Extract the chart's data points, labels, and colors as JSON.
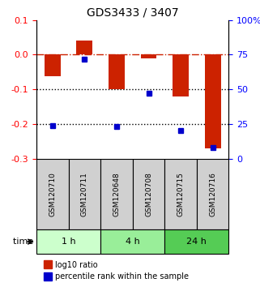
{
  "title": "GDS3433 / 3407",
  "samples": [
    "GSM120710",
    "GSM120711",
    "GSM120648",
    "GSM120708",
    "GSM120715",
    "GSM120716"
  ],
  "log10_ratio": [
    -0.063,
    0.042,
    -0.1,
    -0.01,
    -0.12,
    -0.27
  ],
  "percentile_rank": [
    24,
    72,
    23,
    47,
    20,
    8
  ],
  "time_groups": [
    {
      "label": "1 h",
      "start": 0,
      "end": 2,
      "color": "#ccffcc"
    },
    {
      "label": "4 h",
      "start": 2,
      "end": 4,
      "color": "#99ee99"
    },
    {
      "label": "24 h",
      "start": 4,
      "end": 6,
      "color": "#55cc55"
    }
  ],
  "ylim_left": [
    -0.3,
    0.1
  ],
  "ylim_right": [
    0,
    100
  ],
  "yticks_left": [
    -0.3,
    -0.2,
    -0.1,
    0.0,
    0.1
  ],
  "yticks_right": [
    0,
    25,
    50,
    75,
    100
  ],
  "ytick_labels_right": [
    "0",
    "25",
    "50",
    "75",
    "100%"
  ],
  "bar_color": "#cc2200",
  "dot_color": "#0000cc",
  "hline_color": "#cc2200",
  "hline_style": "-.",
  "dotted_line_color": "#000000",
  "bar_width": 0.5,
  "legend_bar_label": "log10 ratio",
  "legend_dot_label": "percentile rank within the sample",
  "xlabel_bottom": "time"
}
